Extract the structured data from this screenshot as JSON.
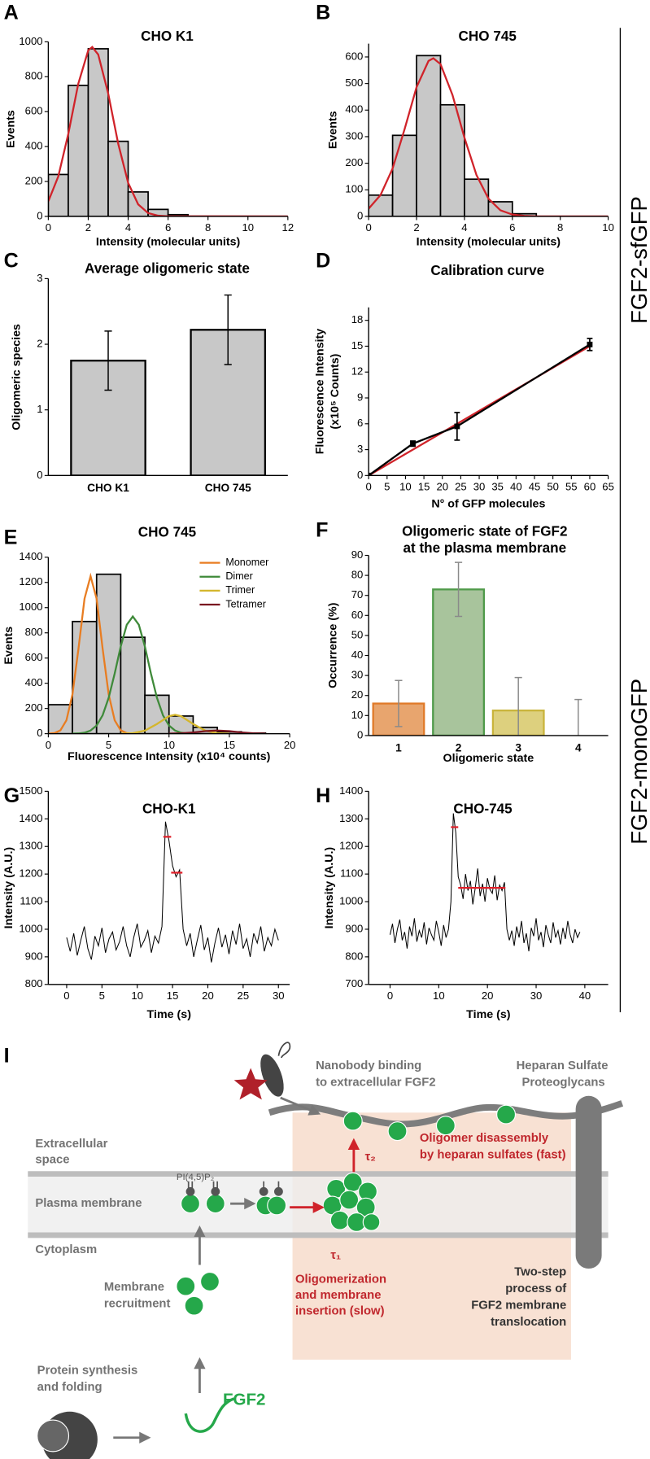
{
  "panel_labels": [
    "A",
    "B",
    "C",
    "D",
    "E",
    "F",
    "G",
    "H",
    "I"
  ],
  "side_labels": [
    "FGF2-sfGFP",
    "FGF2-monoGFP"
  ],
  "chart_data": [
    {
      "type": "histogram",
      "title": "CHO K1",
      "xlabel": "Intensity (molecular units)",
      "ylabel": "Events",
      "bins": [
        0,
        1,
        2,
        3,
        4,
        5,
        6,
        7
      ],
      "values": [
        240,
        750,
        960,
        430,
        140,
        40,
        10
      ],
      "color": "#c8c8c8",
      "edgecolor": "#000000",
      "xlim": [
        0,
        12
      ],
      "xticks": [
        0,
        2,
        4,
        6,
        8,
        10,
        12
      ],
      "ylim": [
        0,
        1000
      ],
      "yticks": [
        0,
        200,
        400,
        600,
        800,
        1000
      ],
      "fits": [
        {
          "color": "#d0232a",
          "x": [
            0,
            0.5,
            1,
            1.5,
            2,
            2.2,
            2.5,
            3,
            3.5,
            4,
            4.5,
            5,
            5.5,
            6,
            12
          ],
          "values": [
            86,
            229,
            472,
            759,
            951,
            970,
            927,
            704,
            417,
            192,
            69,
            19,
            4,
            1,
            0
          ]
        }
      ]
    },
    {
      "type": "histogram",
      "title": "CHO 745",
      "xlabel": "Intensity (molecular units)",
      "ylabel": "Events",
      "bins": [
        0,
        1,
        2,
        3,
        4,
        5,
        6,
        7
      ],
      "values": [
        80,
        305,
        605,
        420,
        140,
        55,
        10
      ],
      "color": "#c8c8c8",
      "edgecolor": "#000000",
      "xlim": [
        0,
        10
      ],
      "xticks": [
        0,
        2,
        4,
        6,
        8,
        10
      ],
      "ylim": [
        0,
        650
      ],
      "yticks": [
        0,
        100,
        200,
        300,
        400,
        500,
        600
      ],
      "fits": [
        {
          "color": "#d0232a",
          "x": [
            0,
            0.5,
            1,
            1.5,
            2,
            2.5,
            2.7,
            3,
            3.5,
            4,
            4.5,
            5,
            5.5,
            6,
            6.5,
            7,
            10
          ],
          "values": [
            29,
            81,
            180,
            328,
            486,
            585,
            595,
            573,
            457,
            296,
            156,
            67,
            23,
            7,
            2,
            0,
            0
          ]
        }
      ]
    },
    {
      "type": "bar",
      "title": "Average oligomeric state",
      "ylabel": "Oligomeric species",
      "categories": [
        "CHO K1",
        "CHO 745"
      ],
      "values": [
        1.75,
        2.22
      ],
      "errors": [
        0.45,
        0.53
      ],
      "color": "#c8c8c8",
      "edgecolor": "#000000",
      "error_color": "#000000",
      "ylim": [
        0,
        3
      ],
      "yticks": [
        0,
        1,
        2,
        3
      ]
    },
    {
      "type": "line",
      "title": "Calibration curve",
      "xlabel": "N° of GFP molecules",
      "ylabel": [
        "Fluorescence Intensity",
        "(x10⁵ Counts)"
      ],
      "xlim": [
        0,
        65
      ],
      "xticks": [
        0,
        5,
        10,
        15,
        20,
        25,
        30,
        35,
        40,
        45,
        50,
        55,
        60,
        65
      ],
      "ylim": [
        0,
        19.5
      ],
      "yticks": [
        0,
        3,
        6,
        9,
        12,
        15,
        18
      ],
      "series": [
        {
          "color": "#d0232a",
          "x": [
            0,
            60
          ],
          "values": [
            0,
            15
          ]
        },
        {
          "color": "#000000",
          "marker": "square",
          "x": [
            0,
            12,
            24,
            60
          ],
          "values": [
            0,
            3.7,
            5.7,
            15.2
          ],
          "errors": [
            0,
            0.3,
            1.6,
            0.7
          ]
        }
      ]
    },
    {
      "type": "histogram",
      "title": "CHO 745",
      "xlabel": "Fluorescence Intensity (x10⁴ counts)",
      "ylabel": "Events",
      "bins": [
        0,
        2,
        4,
        6,
        8,
        10,
        12,
        14,
        16,
        18
      ],
      "values": [
        230,
        890,
        1265,
        765,
        305,
        140,
        50,
        15,
        5
      ],
      "color": "#c8c8c8",
      "edgecolor": "#000000",
      "xlim": [
        0,
        20
      ],
      "xticks": [
        0,
        5,
        10,
        15,
        20
      ],
      "ylim": [
        0,
        1400
      ],
      "yticks": [
        0,
        200,
        400,
        600,
        800,
        1000,
        1200,
        1400
      ],
      "legend": "upper right",
      "fits": [
        {
          "name": "Monomer",
          "color": "#e87d22",
          "x": [
            0,
            0.5,
            1,
            1.5,
            2,
            2.5,
            3,
            3.5,
            4,
            4.5,
            5,
            5.5,
            6,
            6.5,
            7
          ],
          "values": [
            1,
            5,
            26,
            106,
            312,
            675,
            1071,
            1250,
            1071,
            675,
            312,
            106,
            26,
            5,
            1
          ]
        },
        {
          "name": "Dimer",
          "color": "#3f8a3a",
          "x": [
            2,
            2.5,
            3,
            3.5,
            4,
            4.5,
            5,
            5.5,
            6,
            6.5,
            7,
            7.5,
            8,
            8.5,
            9,
            9.5,
            10,
            10.5,
            11,
            11.5,
            12
          ],
          "values": [
            1,
            2,
            8,
            25,
            65,
            146,
            285,
            478,
            692,
            864,
            930,
            864,
            692,
            478,
            285,
            146,
            65,
            25,
            8,
            2,
            1
          ]
        },
        {
          "name": "Trimer",
          "color": "#d4b62c",
          "x": [
            6,
            7,
            8,
            9,
            10,
            10.5,
            11,
            12,
            13,
            14,
            15
          ],
          "values": [
            0,
            4,
            24,
            77,
            139,
            150,
            139,
            77,
            24,
            4,
            0
          ]
        },
        {
          "name": "Tetramer",
          "color": "#7a1420",
          "x": [
            10,
            11,
            12,
            13,
            14,
            15,
            16,
            17,
            18
          ],
          "values": [
            1,
            3,
            10,
            20,
            25,
            20,
            10,
            3,
            1
          ]
        }
      ]
    },
    {
      "type": "bar",
      "title": [
        "Oligomeric state of FGF2",
        "at the plasma membrane"
      ],
      "xlabel": "Oligomeric state",
      "ylabel": "Occurrence (%)",
      "categories": [
        "1",
        "2",
        "3",
        "4"
      ],
      "values": [
        16,
        73,
        12.5,
        0
      ],
      "errors": [
        11.5,
        13.5,
        16.5,
        18
      ],
      "colors": [
        "#e8a56e",
        "#a8c49c",
        "#ddd07e",
        "#e8b0a8"
      ],
      "edgecolors": [
        "#e07a28",
        "#4f9a49",
        "#c9b43c",
        "#8a1c24"
      ],
      "error_color": "#8a8a8a",
      "ylim": [
        0,
        90
      ],
      "yticks": [
        0,
        10,
        20,
        30,
        40,
        50,
        60,
        70,
        80,
        90
      ]
    },
    {
      "type": "line",
      "title": "CHO-K1",
      "xlabel": "Time (s)",
      "ylabel": "Intensity (A.U.)",
      "xlim": [
        -2.6,
        31.6
      ],
      "xticks": [
        0,
        5,
        10,
        15,
        20,
        25,
        30
      ],
      "ylim": [
        800,
        1500
      ],
      "yticks": [
        800,
        900,
        1000,
        1100,
        1200,
        1300,
        1400,
        1500
      ],
      "series": [
        {
          "color": "#000000",
          "x": [
            0,
            0.5,
            1,
            1.5,
            2,
            2.5,
            3,
            3.5,
            4,
            4.5,
            5,
            5.5,
            6,
            6.5,
            7,
            7.5,
            8,
            8.5,
            9,
            9.5,
            10,
            10.5,
            11,
            11.5,
            12,
            12.5,
            13,
            13.5,
            14,
            14.5,
            15,
            15.5,
            16,
            16.5,
            17,
            17.5,
            18,
            18.5,
            19,
            19.5,
            20,
            20.5,
            21,
            21.5,
            22,
            22.5,
            23,
            23.5,
            24,
            24.5,
            25,
            25.5,
            26,
            26.5,
            27,
            27.5,
            28,
            28.5,
            29,
            29.5,
            30
          ],
          "values": [
            970,
            920,
            985,
            905,
            960,
            1010,
            930,
            890,
            975,
            940,
            1005,
            915,
            965,
            990,
            925,
            955,
            1010,
            940,
            900,
            970,
            1020,
            935,
            960,
            995,
            915,
            975,
            950,
            1010,
            1390,
            1320,
            1230,
            1190,
            1215,
            1000,
            940,
            985,
            900,
            960,
            1015,
            925,
            970,
            880,
            950,
            1005,
            935,
            980,
            910,
            995,
            945,
            1020,
            930,
            965,
            900,
            985,
            950,
            1010,
            920,
            970,
            940,
            1000,
            960
          ]
        },
        {
          "color": "#e0202a",
          "x": [
            13.7,
            14.8
          ],
          "values": [
            1335,
            1335
          ]
        },
        {
          "color": "#e0202a",
          "x": [
            14.8,
            16.4
          ],
          "values": [
            1205,
            1205
          ]
        }
      ]
    },
    {
      "type": "line",
      "title": "CHO-745",
      "xlabel": "Time (s)",
      "ylabel": "Intensity (A.U.)",
      "xlim": [
        -4.4,
        44.8
      ],
      "xticks": [
        0,
        10,
        20,
        30,
        40
      ],
      "ylim": [
        700,
        1400
      ],
      "yticks": [
        700,
        800,
        900,
        1000,
        1100,
        1200,
        1300,
        1400
      ],
      "series": [
        {
          "color": "#000000",
          "x": [
            0,
            0.5,
            1,
            1.5,
            2,
            2.5,
            3,
            3.5,
            4,
            4.5,
            5,
            5.5,
            6,
            6.5,
            7,
            7.5,
            8,
            8.5,
            9,
            9.5,
            10,
            10.5,
            11,
            11.5,
            12,
            12.5,
            13,
            13.5,
            14,
            14.5,
            15,
            15.5,
            16,
            16.5,
            17,
            17.5,
            18,
            18.5,
            19,
            19.5,
            20,
            20.5,
            21,
            21.5,
            22,
            22.5,
            23,
            23.5,
            24,
            24.5,
            25,
            25.5,
            26,
            26.5,
            27,
            27.5,
            28,
            28.5,
            29,
            29.5,
            30,
            30.5,
            31,
            31.5,
            32,
            32.5,
            33,
            33.5,
            34,
            34.5,
            35,
            35.5,
            36,
            36.5,
            37,
            37.5,
            38,
            38.5,
            39
          ],
          "values": [
            880,
            920,
            850,
            900,
            935,
            860,
            890,
            830,
            910,
            875,
            940,
            855,
            895,
            870,
            925,
            845,
            905,
            880,
            860,
            930,
            890,
            840,
            915,
            870,
            900,
            1000,
            1320,
            1250,
            1090,
            1060,
            1010,
            1100,
            1040,
            1075,
            990,
            1050,
            1120,
            1020,
            1065,
            1000,
            1085,
            1045,
            1030,
            1095,
            1005,
            1060,
            1040,
            1070,
            900,
            860,
            895,
            840,
            910,
            870,
            930,
            850,
            885,
            820,
            905,
            875,
            940,
            860,
            890,
            835,
            915,
            880,
            850,
            925,
            870,
            895,
            845,
            905,
            865,
            930,
            880,
            850,
            900,
            870,
            890
          ]
        },
        {
          "color": "#e0202a",
          "x": [
            12.5,
            14
          ],
          "values": [
            1270,
            1270
          ]
        },
        {
          "color": "#e0202a",
          "x": [
            14,
            23.7
          ],
          "values": [
            1050,
            1050
          ]
        }
      ]
    }
  ],
  "diagram": {
    "nanobody": [
      "Nanobody binding",
      "to extracellular FGF2"
    ],
    "hspg": [
      "Heparan Sulfate",
      "Proteoglycans"
    ],
    "extracellular": [
      "Extracellular",
      "space"
    ],
    "plasma_membrane": "Plasma membrane",
    "cytoplasm": "Cytoplasm",
    "pip2": "PI(4,5)P₂",
    "tau2": "τ₂",
    "disassembly": [
      "Oligomer disassembly",
      "by heparan sulfates (fast)"
    ],
    "tau1": "τ₁",
    "oligomerization": [
      "Oligomerization",
      "and membrane",
      "insertion (slow)"
    ],
    "two_step": [
      "Two-step",
      "process of",
      "FGF2 membrane",
      "translocation"
    ],
    "recruitment": [
      "Membrane",
      "recruitment"
    ],
    "synthesis": [
      "Protein synthesis",
      "and folding"
    ],
    "fgf2": "FGF2"
  }
}
